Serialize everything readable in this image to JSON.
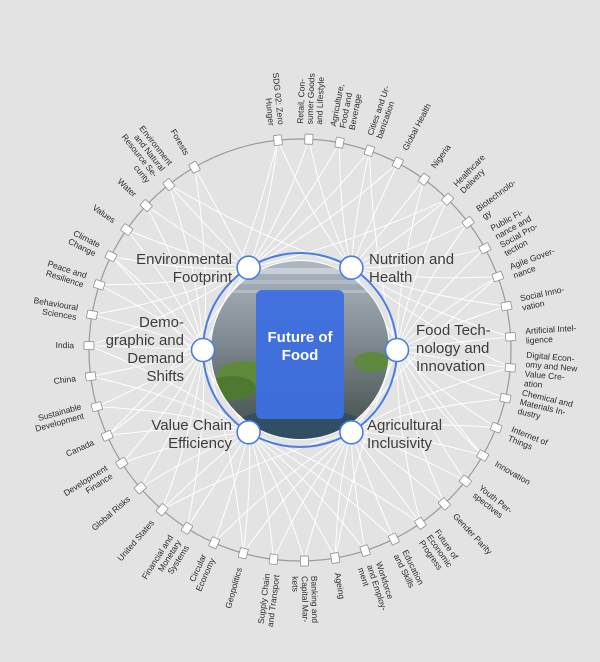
{
  "center": {
    "title_lines": [
      "Future of",
      "Food"
    ],
    "accent_color": "#3d6fe0",
    "hub_ring_color": "#4a7de3"
  },
  "key_issues": [
    {
      "id": "environmental-footprint",
      "lines": [
        "Environmental",
        "Footprint"
      ]
    },
    {
      "id": "nutrition-and-health",
      "lines": [
        "Nutrition and",
        "Health"
      ]
    },
    {
      "id": "food-technology-and-innovation",
      "lines": [
        "Food Tech-",
        "nology and",
        "Innovation"
      ]
    },
    {
      "id": "agricultural-inclusivity",
      "lines": [
        "Agricultural",
        "Inclusivity"
      ]
    },
    {
      "id": "value-chain-efficiency",
      "lines": [
        "Value Chain",
        "Efficiency"
      ]
    },
    {
      "id": "demographic-and-demand-shifts",
      "lines": [
        "Demo-",
        "graphic and",
        "Demand",
        "Shifts"
      ]
    }
  ],
  "topics": [
    {
      "lines": [
        "SDG 02: Zero",
        "Hunger"
      ]
    },
    {
      "lines": [
        "Retail, Con-",
        "sumer Goods",
        "and Lifestyle"
      ]
    },
    {
      "lines": [
        "Agriculture,",
        "Food and",
        "Beverage"
      ]
    },
    {
      "lines": [
        "Cities and Ur-",
        "banization"
      ]
    },
    {
      "lines": [
        "Global Health"
      ]
    },
    {
      "lines": [
        "Nigeria"
      ]
    },
    {
      "lines": [
        "Healthcare",
        "Delivery"
      ]
    },
    {
      "lines": [
        "Biotechnolo-",
        "gy"
      ]
    },
    {
      "lines": [
        "Public Fi-",
        "nance and",
        "Social Pro-",
        "tection"
      ]
    },
    {
      "lines": [
        "Agile Gover-",
        "nance"
      ]
    },
    {
      "lines": [
        "Social Inno-",
        "vation"
      ]
    },
    {
      "lines": [
        "Artificial Intel-",
        "ligence"
      ]
    },
    {
      "lines": [
        "Digital Econ-",
        "omy and New",
        "Value Cre-",
        "ation"
      ]
    },
    {
      "lines": [
        "Chemical and",
        "Materials In-",
        "dustry"
      ]
    },
    {
      "lines": [
        "Internet of",
        "Things"
      ]
    },
    {
      "lines": [
        "Innovation"
      ]
    },
    {
      "lines": [
        "Youth Per-",
        "spectives"
      ]
    },
    {
      "lines": [
        "Gender Parity"
      ]
    },
    {
      "lines": [
        "Future of",
        "Economic",
        "Progress"
      ]
    },
    {
      "lines": [
        "Education",
        "and Skills"
      ]
    },
    {
      "lines": [
        "Workforce",
        "and Employ-",
        "ment"
      ]
    },
    {
      "lines": [
        "Ageing"
      ]
    },
    {
      "lines": [
        "Banking and",
        "Capital Mar-",
        "kets"
      ]
    },
    {
      "lines": [
        "Supply Chain",
        "and Transport"
      ]
    },
    {
      "lines": [
        "Geopolitics"
      ]
    },
    {
      "lines": [
        "Circular",
        "Economy"
      ]
    },
    {
      "lines": [
        "Financial and",
        "Monetary",
        "Systems"
      ]
    },
    {
      "lines": [
        "United States"
      ]
    },
    {
      "lines": [
        "Global Risks"
      ]
    },
    {
      "lines": [
        "Development",
        "Finance"
      ]
    },
    {
      "lines": [
        "Canada"
      ]
    },
    {
      "lines": [
        "Sustainable",
        "Development"
      ]
    },
    {
      "lines": [
        "China"
      ]
    },
    {
      "lines": [
        "India"
      ]
    },
    {
      "lines": [
        "Behavioural",
        "Sciences"
      ]
    },
    {
      "lines": [
        "Peace and",
        "Resilience"
      ]
    },
    {
      "lines": [
        "Climate",
        "Change"
      ]
    },
    {
      "lines": [
        "Values"
      ]
    },
    {
      "lines": [
        "Water"
      ]
    },
    {
      "lines": [
        "Environment",
        "and Natural",
        "Resource Se-",
        "curity"
      ]
    },
    {
      "lines": [
        "Forests"
      ]
    }
  ]
}
